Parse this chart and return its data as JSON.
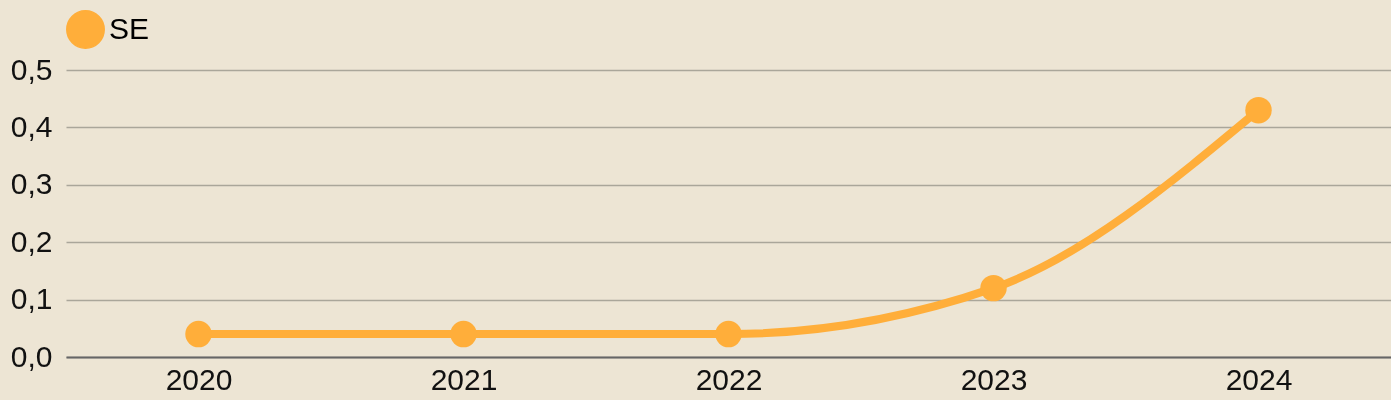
{
  "chart_data": {
    "type": "line",
    "categories": [
      "2020",
      "2021",
      "2022",
      "2023",
      "2024"
    ],
    "series": [
      {
        "name": "SE",
        "color": "#ffae3a",
        "values": [
          0.04,
          0.04,
          0.04,
          0.12,
          0.43
        ]
      }
    ],
    "ylim": [
      0,
      0.5
    ],
    "yticks": [
      {
        "value": 0,
        "label": "0,0"
      },
      {
        "value": 0.1,
        "label": "0,1"
      },
      {
        "value": 0.2,
        "label": "0,2"
      },
      {
        "value": 0.3,
        "label": "0,3"
      },
      {
        "value": 0.4,
        "label": "0,4"
      },
      {
        "value": 0.5,
        "label": "0,5"
      }
    ],
    "grid": "y",
    "legend": "top",
    "marker": "circle",
    "line_style": "solid"
  }
}
